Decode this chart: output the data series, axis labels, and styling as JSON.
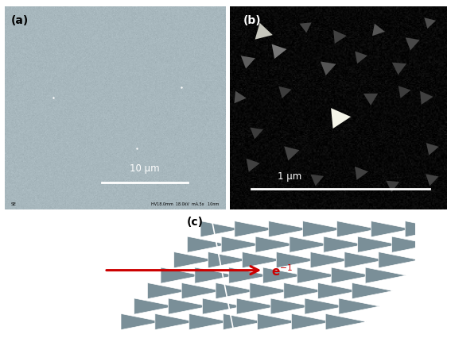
{
  "fig_width": 5.67,
  "fig_height": 4.27,
  "dpi": 100,
  "bg_color": "#ffffff",
  "panel_a": {
    "label": "(a)",
    "label_color": "black",
    "bg_color_rgb": [
      168,
      184,
      190
    ],
    "scale_bar_text": "10 μm",
    "scale_bar_color": "white",
    "bottom_text": "SE",
    "bottom_right_text": "HV18.0mm  18.0kV  mA.5x   10nm"
  },
  "panel_b": {
    "label": "(b)",
    "label_color": "white",
    "bg_color": "#060606",
    "scale_bar_text": "1 μm",
    "scale_bar_color": "white"
  },
  "panel_c": {
    "label": "(c)",
    "label_color": "black",
    "bg_color": "#ffffff",
    "domain_color": "#7a8f98",
    "arrow_color": "#cc0000"
  }
}
